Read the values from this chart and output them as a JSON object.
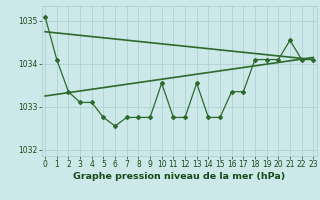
{
  "title": "Graphe pression niveau de la mer (hPa)",
  "x_values": [
    0,
    1,
    2,
    3,
    4,
    5,
    6,
    7,
    8,
    9,
    10,
    11,
    12,
    13,
    14,
    15,
    16,
    17,
    18,
    19,
    20,
    21,
    22,
    23
  ],
  "pressure_values": [
    1035.1,
    1034.1,
    1033.35,
    1033.1,
    1033.1,
    1032.75,
    1032.55,
    1032.75,
    1032.75,
    1032.75,
    1033.55,
    1032.75,
    1032.75,
    1033.55,
    1032.75,
    1032.75,
    1033.35,
    1033.35,
    1034.1,
    1034.1,
    1034.1,
    1034.55,
    1034.1,
    1034.1
  ],
  "trend1_x": [
    0,
    23
  ],
  "trend1_y": [
    1034.75,
    1034.1
  ],
  "trend2_x": [
    0,
    23
  ],
  "trend2_y": [
    1033.25,
    1034.15
  ],
  "ylim": [
    1031.85,
    1035.35
  ],
  "yticks": [
    1032,
    1033,
    1034,
    1035
  ],
  "xlim": [
    -0.3,
    23.3
  ],
  "line_color": "#2d6a2d",
  "bg_color": "#cce8e8",
  "grid_color": "#aacece",
  "text_color": "#1a4a1a",
  "title_fontsize": 6.8,
  "tick_fontsize": 5.5
}
